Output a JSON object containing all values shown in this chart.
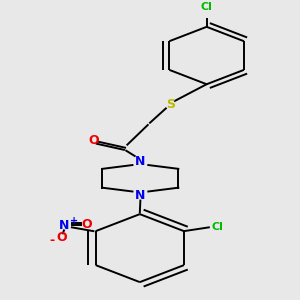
{
  "bg_color": "#e8e8e8",
  "bond_color": "#000000",
  "N_color": "#0000ee",
  "O_color": "#ee0000",
  "S_color": "#bbbb00",
  "Cl_color": "#00bb00",
  "line_width": 1.4,
  "fig_size": [
    3.0,
    3.0
  ],
  "dpi": 100,
  "xlim": [
    0,
    300
  ],
  "ylim": [
    0,
    300
  ]
}
